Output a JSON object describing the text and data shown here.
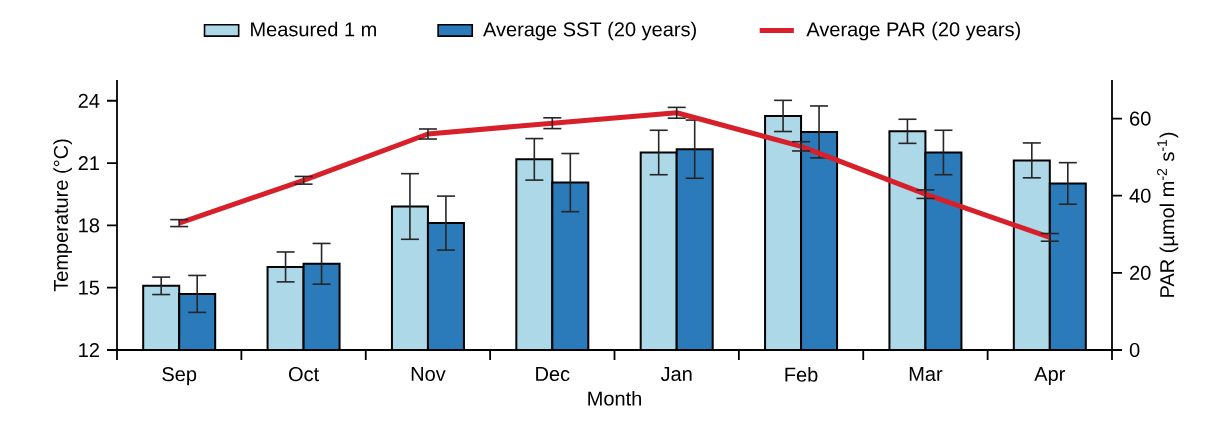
{
  "chart_data": {
    "type": "bar",
    "xlabel": "Month",
    "ylabel": "Temperature (°C)",
    "y2label": "PAR (µmol m$^{-2}$ s$^{-1}$)",
    "categories": [
      "Sep",
      "Oct",
      "Nov",
      "Dec",
      "Jan",
      "Feb",
      "Mar",
      "Apr"
    ],
    "series": [
      {
        "name": "Measured 1 m",
        "type": "bar",
        "color": "#acd8e8",
        "values": [
          15.09,
          16.0,
          18.91,
          21.18,
          21.51,
          23.27,
          22.53,
          21.13
        ],
        "errors": [
          0.42,
          0.72,
          1.58,
          1.0,
          1.07,
          0.75,
          0.58,
          0.84
        ]
      },
      {
        "name": "Average SST (20 years)",
        "type": "bar",
        "color": "#2b7bba",
        "values": [
          14.7,
          16.15,
          18.11,
          20.06,
          21.67,
          22.5,
          21.51,
          20.02
        ],
        "errors": [
          0.89,
          0.98,
          1.3,
          1.4,
          1.4,
          1.25,
          1.07,
          1.0
        ]
      },
      {
        "name": "Average PAR (20 years)",
        "type": "line",
        "axis": "y2",
        "color": "#d7202a",
        "values": [
          32.9,
          44.0,
          56.0,
          58.8,
          61.5,
          52.8,
          40.4,
          29.2
        ],
        "errors": [
          0.9,
          1.0,
          1.3,
          1.4,
          1.4,
          1.2,
          1.1,
          1.0
        ]
      }
    ],
    "ylim": [
      12,
      25
    ],
    "yticks": [
      12,
      15,
      18,
      21,
      24
    ],
    "y2lim": [
      0,
      70
    ],
    "y2ticks": [
      0,
      20,
      40,
      60
    ],
    "legend": "top",
    "grid": false,
    "marker": "none",
    "line_style": "solid"
  }
}
